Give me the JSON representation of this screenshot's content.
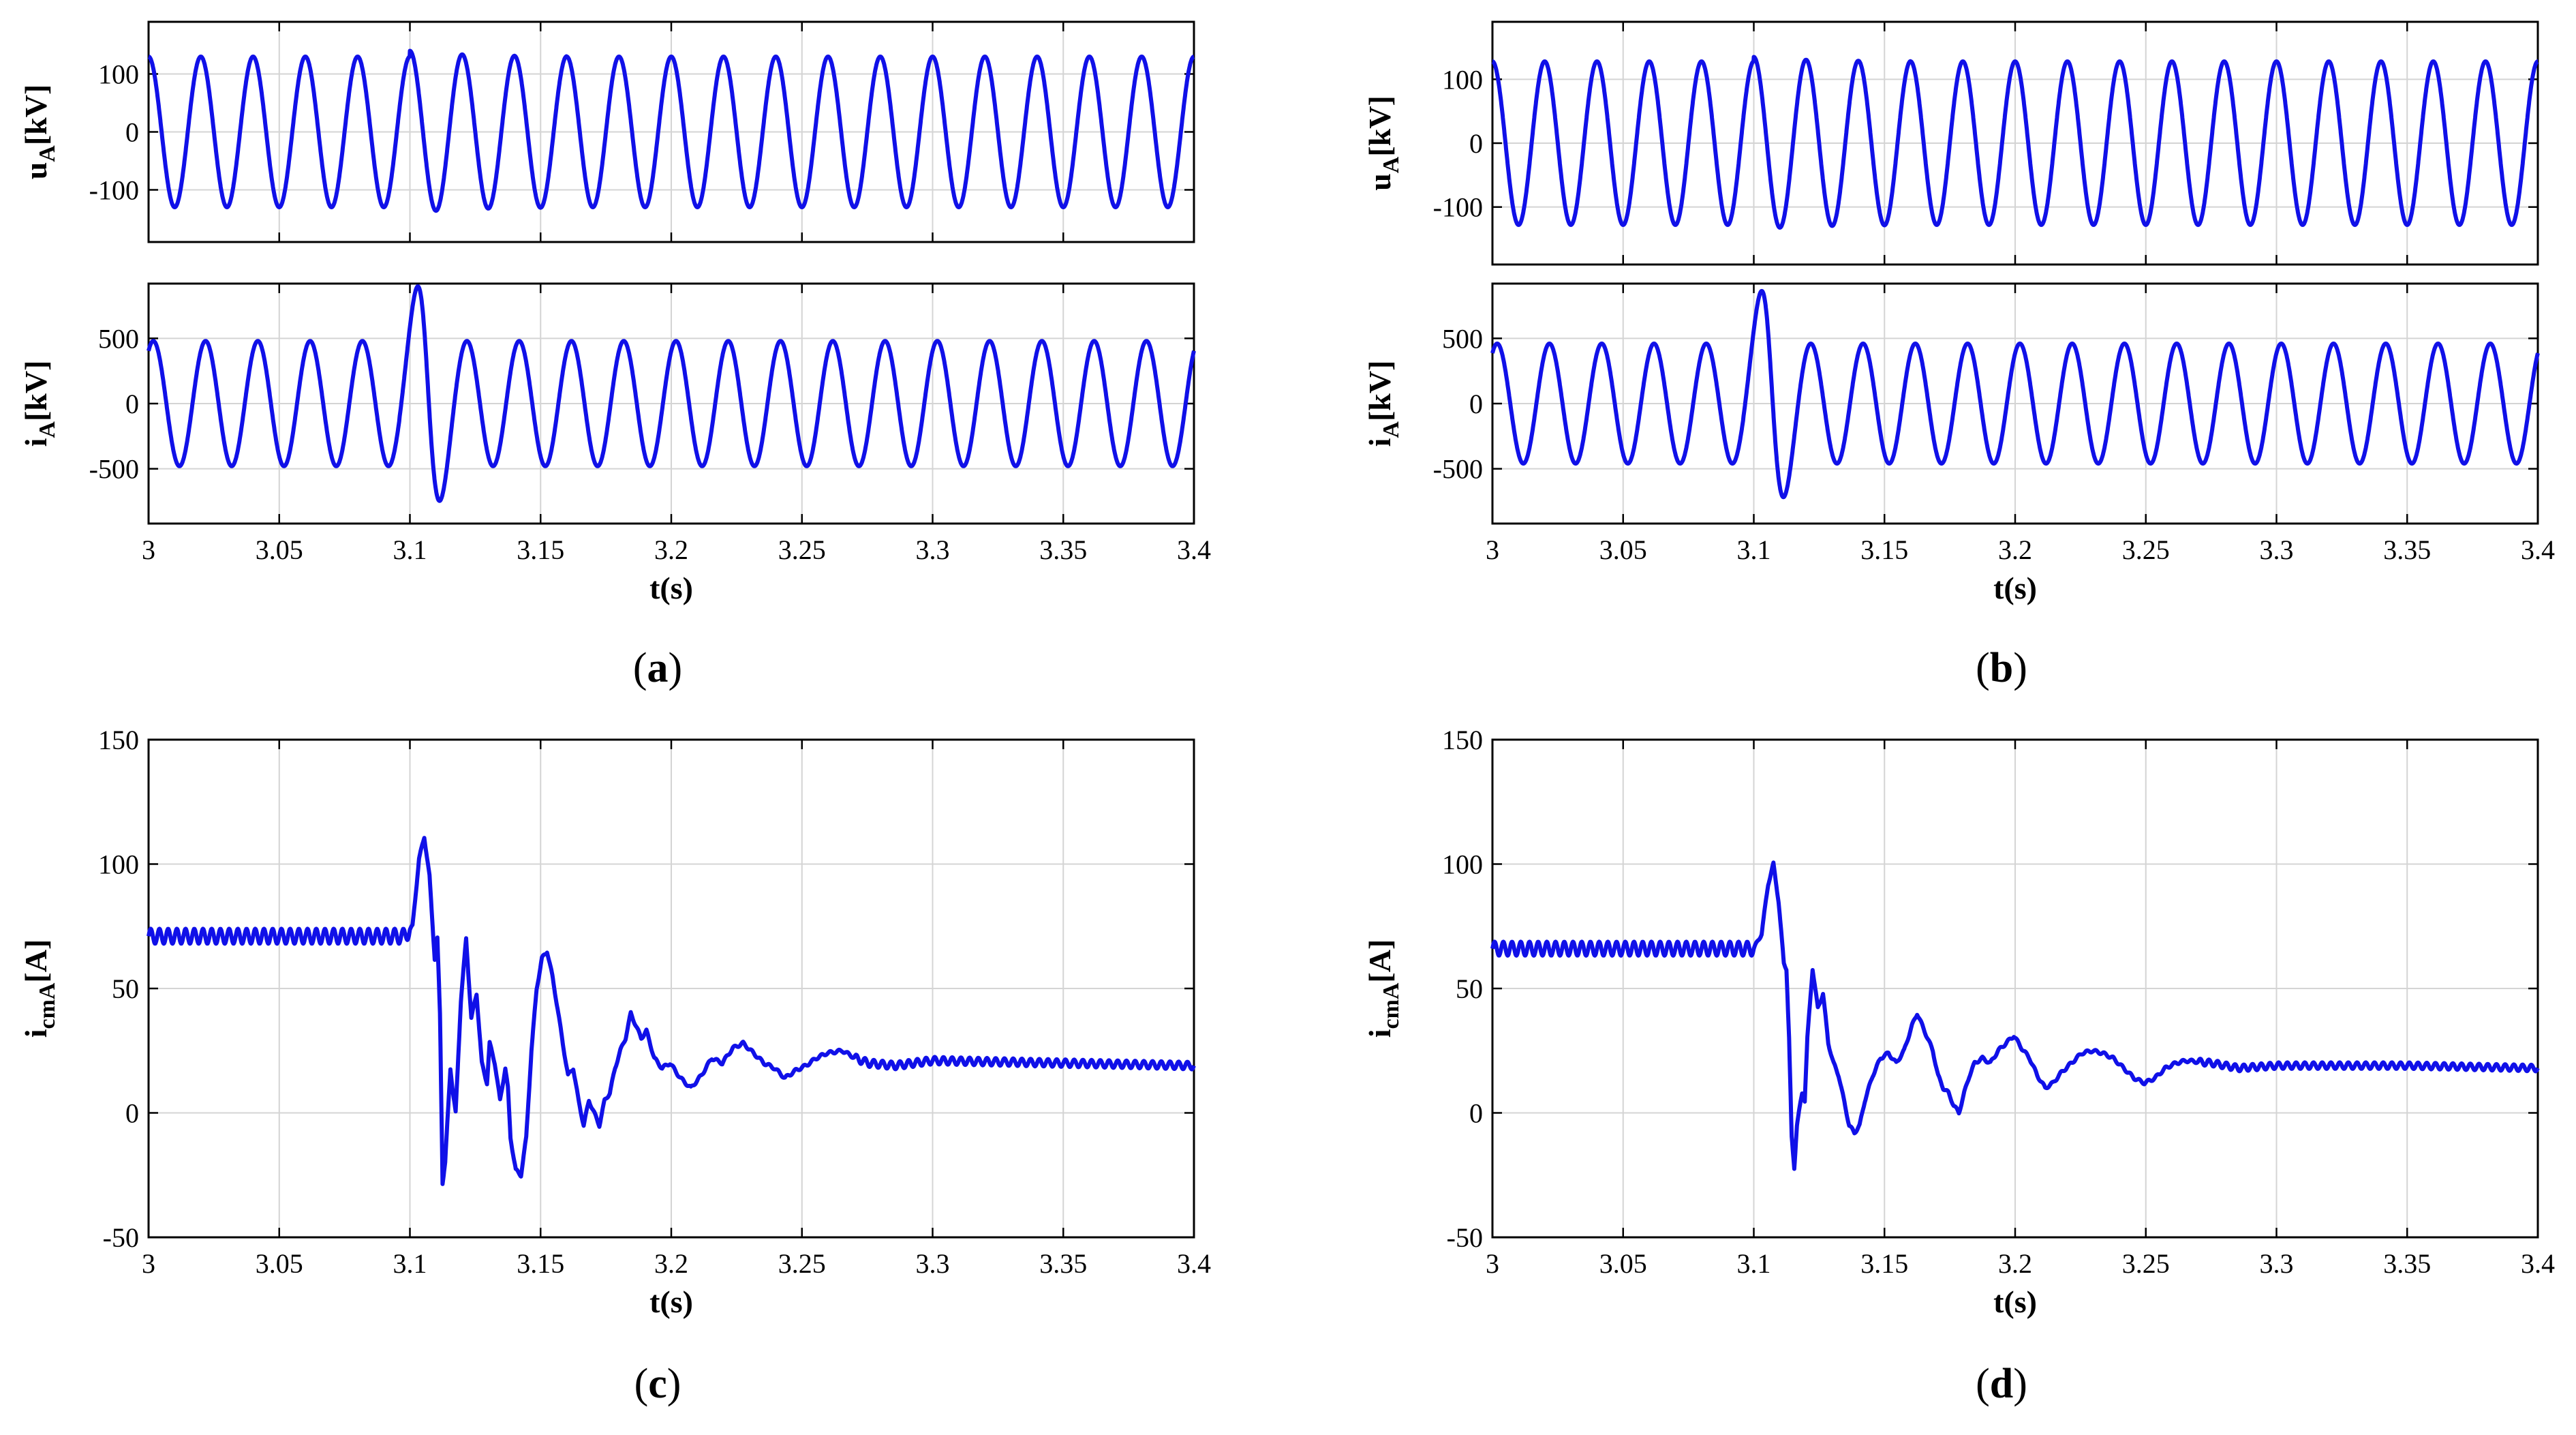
{
  "chart_data": [
    {
      "id": "a",
      "caption": "a",
      "xlabel": "t(s)",
      "xlim": [
        3,
        3.4
      ],
      "xticks": [
        "3",
        "3.05",
        "3.1",
        "3.15",
        "3.2",
        "3.25",
        "3.3",
        "3.35",
        "3.4"
      ],
      "subplots": [
        {
          "type": "line",
          "ylabel_main": "u",
          "ylabel_sub": "A",
          "ylabel_unit": "[kV]",
          "ylim": [
            -190,
            190
          ],
          "yticks": [
            "100",
            "0",
            "-100"
          ],
          "series": [
            {
              "kind": "voltage",
              "amplitude": 130,
              "freq_hz": 50,
              "event_t": 3.1,
              "dip": 140
            }
          ]
        },
        {
          "type": "line",
          "ylabel_main": "i",
          "ylabel_sub": "A",
          "ylabel_unit": "[kV]",
          "ylim": [
            -920,
            920
          ],
          "yticks": [
            "500",
            "0",
            "-500"
          ],
          "series": [
            {
              "kind": "current",
              "amplitude": 480,
              "freq_hz": 50,
              "event_t": 3.1,
              "peak": 780,
              "trough": -580
            }
          ]
        }
      ]
    },
    {
      "id": "b",
      "caption": "b",
      "xlabel": "t(s)",
      "xlim": [
        3,
        3.4
      ],
      "xticks": [
        "3",
        "3.05",
        "3.1",
        "3.15",
        "3.2",
        "3.25",
        "3.3",
        "3.35",
        "3.4"
      ],
      "subplots": [
        {
          "type": "line",
          "ylabel_main": "u",
          "ylabel_sub": "A",
          "ylabel_unit": "[kV]",
          "ylim": [
            -190,
            190
          ],
          "yticks": [
            "100",
            "0",
            "-100"
          ],
          "series": [
            {
              "kind": "voltage",
              "amplitude": 128,
              "freq_hz": 50,
              "event_t": 3.1,
              "dip": 135
            }
          ]
        },
        {
          "type": "line",
          "ylabel_main": "i",
          "ylabel_sub": "A",
          "ylabel_unit": "[kV]",
          "ylim": [
            -920,
            920
          ],
          "yticks": [
            "500",
            "0",
            "-500"
          ],
          "series": [
            {
              "kind": "current",
              "amplitude": 460,
              "freq_hz": 50,
              "event_t": 3.1,
              "peak": 750,
              "trough": -560
            }
          ]
        }
      ]
    },
    {
      "id": "c",
      "caption": "c",
      "type": "line",
      "xlabel": "t(s)",
      "ylabel_main": "i",
      "ylabel_sub": "cmA",
      "ylabel_unit": "[A]",
      "xlim": [
        3,
        3.4
      ],
      "ylim": [
        -50,
        150
      ],
      "xticks": [
        "3",
        "3.05",
        "3.1",
        "3.15",
        "3.2",
        "3.25",
        "3.3",
        "3.35",
        "3.4"
      ],
      "yticks": [
        "150",
        "100",
        "50",
        "0",
        "-50"
      ],
      "ripple": [
        3.0,
        1.5
      ],
      "series": [
        {
          "name": "",
          "points": [
            [
              3.0,
              71
            ],
            [
              3.098,
              71
            ],
            [
              3.101,
              75
            ],
            [
              3.1035,
              102
            ],
            [
              3.1055,
              111
            ],
            [
              3.1075,
              95
            ],
            [
              3.1095,
              62
            ],
            [
              3.1105,
              70
            ],
            [
              3.1115,
              40
            ],
            [
              3.1125,
              -28
            ],
            [
              3.1135,
              -20
            ],
            [
              3.1155,
              18
            ],
            [
              3.1165,
              8
            ],
            [
              3.1175,
              0
            ],
            [
              3.1195,
              45
            ],
            [
              3.1215,
              70
            ],
            [
              3.1235,
              38
            ],
            [
              3.1255,
              48
            ],
            [
              3.1275,
              20
            ],
            [
              3.1295,
              12
            ],
            [
              3.1305,
              28
            ],
            [
              3.1325,
              20
            ],
            [
              3.1345,
              5
            ],
            [
              3.1365,
              18
            ],
            [
              3.1375,
              10
            ],
            [
              3.1385,
              -10
            ],
            [
              3.1405,
              -23
            ],
            [
              3.1425,
              -25
            ],
            [
              3.1445,
              -10
            ],
            [
              3.1465,
              25
            ],
            [
              3.1485,
              50
            ],
            [
              3.1505,
              62
            ],
            [
              3.1525,
              65
            ],
            [
              3.1545,
              55
            ],
            [
              3.1565,
              42
            ],
            [
              3.1585,
              28
            ],
            [
              3.1605,
              15
            ],
            [
              3.1625,
              18
            ],
            [
              3.1645,
              5
            ],
            [
              3.1665,
              -5
            ],
            [
              3.1685,
              5
            ],
            [
              3.1705,
              0
            ],
            [
              3.1725,
              -5
            ],
            [
              3.1745,
              5
            ],
            [
              3.1765,
              8
            ],
            [
              3.1785,
              18
            ],
            [
              3.1805,
              25
            ],
            [
              3.1825,
              30
            ],
            [
              3.1845,
              40
            ],
            [
              3.1865,
              35
            ],
            [
              3.1885,
              30
            ],
            [
              3.1905,
              33
            ],
            [
              3.1935,
              22
            ],
            [
              3.1965,
              18
            ],
            [
              3.1995,
              20
            ],
            [
              3.2035,
              14
            ],
            [
              3.2075,
              10
            ],
            [
              3.2115,
              15
            ],
            [
              3.2155,
              22
            ],
            [
              3.2195,
              20
            ],
            [
              3.2235,
              26
            ],
            [
              3.2275,
              28
            ],
            [
              3.2315,
              24
            ],
            [
              3.2355,
              20
            ],
            [
              3.2395,
              18
            ],
            [
              3.2435,
              14
            ],
            [
              3.2475,
              17
            ],
            [
              3.2515,
              19
            ],
            [
              3.2555,
              22
            ],
            [
              3.2595,
              24
            ],
            [
              3.2655,
              25
            ],
            [
              3.2705,
              22
            ],
            [
              3.2755,
              20
            ],
            [
              3.2855,
              19
            ],
            [
              3.3,
              21
            ],
            [
              3.35,
              20
            ],
            [
              3.4,
              19
            ]
          ]
        }
      ]
    },
    {
      "id": "d",
      "caption": "d",
      "type": "line",
      "xlabel": "t(s)",
      "ylabel_main": "i",
      "ylabel_sub": "cmA",
      "ylabel_unit": "[A]",
      "xlim": [
        3,
        3.4
      ],
      "ylim": [
        -50,
        150
      ],
      "xticks": [
        "3",
        "3.05",
        "3.1",
        "3.15",
        "3.2",
        "3.25",
        "3.3",
        "3.35",
        "3.4"
      ],
      "yticks": [
        "150",
        "100",
        "50",
        "0",
        "-50"
      ],
      "ripple": [
        2.8,
        1.3
      ],
      "series": [
        {
          "name": "",
          "points": [
            [
              3.0,
              66
            ],
            [
              3.1,
              66
            ],
            [
              3.103,
              72
            ],
            [
              3.1055,
              92
            ],
            [
              3.1075,
              100
            ],
            [
              3.1095,
              85
            ],
            [
              3.1115,
              60
            ],
            [
              3.1125,
              58
            ],
            [
              3.1135,
              30
            ],
            [
              3.1145,
              -10
            ],
            [
              3.1155,
              -22
            ],
            [
              3.1165,
              -5
            ],
            [
              3.1185,
              8
            ],
            [
              3.1195,
              5
            ],
            [
              3.1205,
              30
            ],
            [
              3.1225,
              58
            ],
            [
              3.1245,
              42
            ],
            [
              3.1265,
              48
            ],
            [
              3.1285,
              28
            ],
            [
              3.1305,
              20
            ],
            [
              3.1325,
              15
            ],
            [
              3.1345,
              5
            ],
            [
              3.1365,
              -5
            ],
            [
              3.1385,
              -8
            ],
            [
              3.1405,
              -5
            ],
            [
              3.1425,
              5
            ],
            [
              3.1455,
              15
            ],
            [
              3.1485,
              22
            ],
            [
              3.1515,
              24
            ],
            [
              3.1545,
              20
            ],
            [
              3.1575,
              25
            ],
            [
              3.1605,
              35
            ],
            [
              3.1625,
              40
            ],
            [
              3.1645,
              35
            ],
            [
              3.1665,
              30
            ],
            [
              3.1685,
              25
            ],
            [
              3.1705,
              15
            ],
            [
              3.1725,
              10
            ],
            [
              3.1745,
              8
            ],
            [
              3.1765,
              3
            ],
            [
              3.1785,
              0
            ],
            [
              3.1805,
              8
            ],
            [
              3.1825,
              15
            ],
            [
              3.1845,
              20
            ],
            [
              3.1875,
              22
            ],
            [
              3.1905,
              20
            ],
            [
              3.1935,
              25
            ],
            [
              3.1965,
              28
            ],
            [
              3.1995,
              31
            ],
            [
              3.2025,
              26
            ],
            [
              3.2055,
              22
            ],
            [
              3.2085,
              15
            ],
            [
              3.2115,
              10
            ],
            [
              3.2145,
              12
            ],
            [
              3.2175,
              16
            ],
            [
              3.2215,
              20
            ],
            [
              3.2255,
              24
            ],
            [
              3.2295,
              25
            ],
            [
              3.2335,
              24
            ],
            [
              3.2375,
              22
            ],
            [
              3.2415,
              18
            ],
            [
              3.2455,
              14
            ],
            [
              3.2495,
              12
            ],
            [
              3.2535,
              14
            ],
            [
              3.2575,
              18
            ],
            [
              3.2615,
              20
            ],
            [
              3.2655,
              21
            ],
            [
              3.2755,
              20
            ],
            [
              3.2855,
              18
            ],
            [
              3.3,
              19
            ],
            [
              3.35,
              19
            ],
            [
              3.4,
              18
            ]
          ]
        }
      ]
    }
  ]
}
